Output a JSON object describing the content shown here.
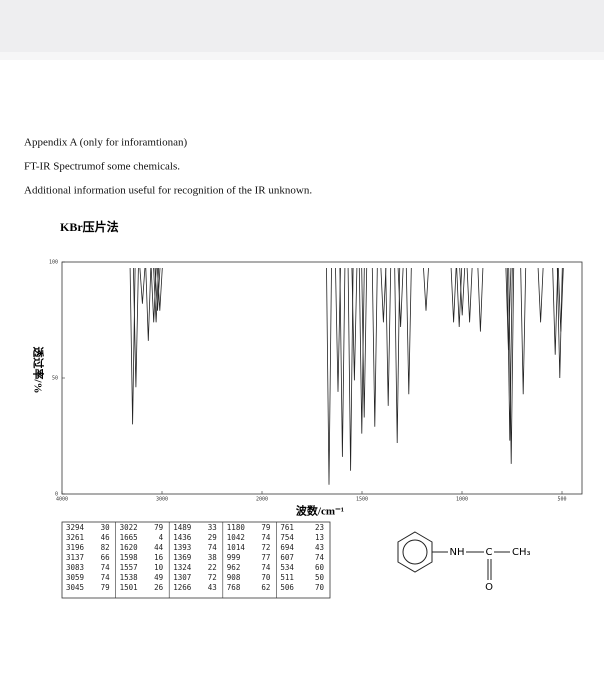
{
  "header": {
    "lines": [
      "Appendix A (only for inforamtionan)",
      "FT-IR Spectrumof some chemicals.",
      "Additional information useful for recognition of the IR unknown."
    ]
  },
  "chart_data": {
    "type": "stick",
    "title": "KBr压片法",
    "x_label": "波数/cm⁻¹",
    "y_label": "透过率/%",
    "x": [
      3294,
      3261,
      3196,
      3137,
      3083,
      3059,
      3045,
      3022,
      1665,
      1620,
      1598,
      1557,
      1538,
      1501,
      1489,
      1436,
      1393,
      1369,
      1324,
      1307,
      1266,
      1180,
      1042,
      1014,
      999,
      962,
      908,
      768,
      761,
      754,
      694,
      607,
      534,
      511,
      506
    ],
    "values": [
      30,
      46,
      82,
      66,
      74,
      74,
      79,
      79,
      4,
      44,
      16,
      10,
      49,
      26,
      33,
      29,
      74,
      38,
      22,
      72,
      43,
      79,
      74,
      72,
      77,
      74,
      70,
      62,
      23,
      13,
      43,
      74,
      60,
      50,
      70
    ],
    "color": "#222222",
    "xlim": [
      4000,
      400
    ],
    "xticks": [
      4000,
      3000,
      2000,
      1500,
      1000,
      500
    ],
    "ylim": [
      0,
      100
    ],
    "yticks": [
      0,
      50,
      100
    ]
  },
  "structure": {
    "labels": [
      "NH",
      "C",
      "CH₃",
      "O"
    ]
  }
}
